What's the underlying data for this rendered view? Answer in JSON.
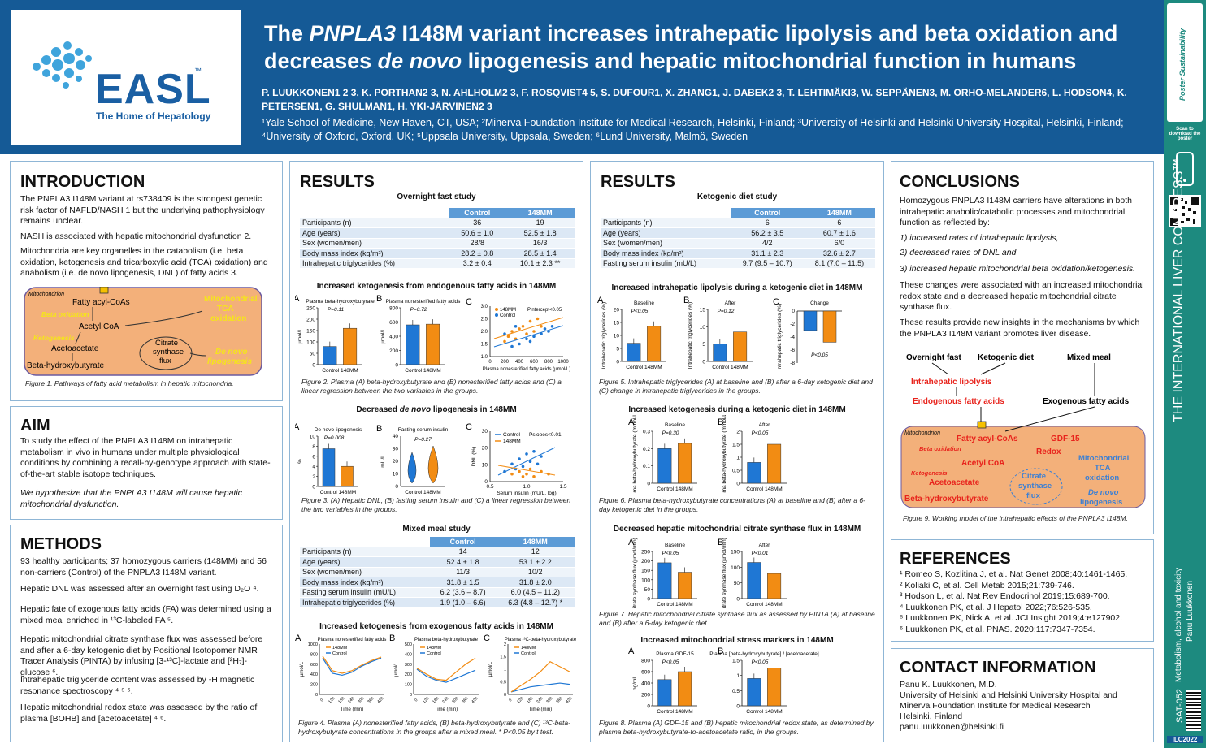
{
  "header": {
    "logo_text": "EASL",
    "logo_tm": "™",
    "logo_tagline": "The Home of Hepatology",
    "title_line1_pre": "The ",
    "title_line1_it": "PNPLA3",
    "title_line1_post": " I148M variant increases intrahepatic lipolysis and beta oxidation and",
    "title_line2_pre": "decreases ",
    "title_line2_it": "de novo",
    "title_line2_post": " lipogenesis and hepatic mitochondrial function in humans",
    "authors": "P. LUUKKONEN1 2 3, K. PORTHAN2 3, N. AHLHOLM2 3, F. ROSQVIST4 5, S. DUFOUR1, X. ZHANG1, J. DABEK2 3, T. LEHTIMÄKI3, W. SEPPÄNEN3, M. ORHO-MELANDER6, L. HODSON4, K. PETERSEN1, G. SHULMAN1, H. YKI-JÄRVINEN2 3",
    "affiliations": "¹Yale School of Medicine, New Haven, CT, USA; ²Minerva Foundation Institute for Medical Research, Helsinki, Finland; ³University of Helsinki and Helsinki University Hospital, Helsinki, Finland; ⁴University of Oxford, Oxford, UK; ⁵Uppsala University, Uppsala, Sweden; ⁶Lund University, Malmö, Sweden"
  },
  "sidebar": {
    "scan": "Scan to download the poster",
    "congress": "THE INTERNATIONAL LIVER CONGRESS™",
    "topic": "Metabolism, alcohol and toxicity",
    "author": "Panu Luukkonen",
    "code": "SAT-052",
    "ilc": "ILC2022",
    "poster_brand": "Poster Sustainability"
  },
  "intro": {
    "heading": "INTRODUCTION",
    "p1": "The PNPLA3 I148M variant at rs738409 is the strongest genetic risk factor of NAFLD/NASH 1 but the underlying pathophysiology remains unclear.",
    "p2": "NASH is associated with hepatic mitochondrial dysfunction 2.",
    "p3": "Mitochondria are key organelles in the catabolism (i.e. beta oxidation, ketogenesis and tricarboxylic acid (TCA) oxidation) and anabolism (i.e. de novo lipogenesis, DNL) of fatty acids 3.",
    "fig1": {
      "mito": "Mitochondrion",
      "facoa": "Fatty acyl-CoAs",
      "betaox": "Beta oxidation",
      "acetylcoa": "Acetyl CoA",
      "ketogen": "Ketogenesis",
      "acetoacetate": "Acetoacetate",
      "bhb": "Beta-hydroxybutyrate",
      "citrate1": "Citrate",
      "citrate2": "synthase",
      "citrate3": "flux",
      "tca1": "Mitochondrial",
      "tca2": "TCA",
      "tca3": "oxidation",
      "dnl1": "De novo",
      "dnl2": "lipogenesis"
    },
    "caption": "Figure 1. Pathways of fatty acid metabolism in hepatic mitochondria."
  },
  "aim": {
    "heading": "AIM",
    "p1": "To study the effect of the PNPLA3 I148M on intrahepatic metabolism in vivo in humans under multiple physiological conditions by combining a recall-by-genotype approach with state-of-the-art stable isotope techniques.",
    "p2": "We hypothesize that the PNPLA3 I148M will cause hepatic mitochondrial dysfunction."
  },
  "methods": {
    "heading": "METHODS",
    "items": [
      "93 healthy participants; 37 homozygous carriers (148MM) and 56 non-carriers (Control) of the PNPLA3 I148M variant.",
      "Hepatic DNL was assessed after an overnight fast using D₂O ⁴.",
      "Hepatic fate of exogenous fatty acids (FA) was determined using a mixed meal enriched in ¹³C-labeled FA ⁵.",
      "Hepatic mitochondrial citrate synthase flux was assessed before and after a 6-day ketogenic diet by Positional Isotopomer NMR Tracer Analysis (PINTA) by infusing [3-¹³C]-lactate and [²H₇]-glucose ⁶.",
      "Intrahepatic triglyceride content was assessed by ¹H magnetic resonance spectroscopy ⁴ ⁵ ⁶.",
      "Hepatic mitochondrial redox state was assessed by the ratio of plasma [BOHB] and [acetoacetate] ⁴ ⁶."
    ]
  },
  "results1": {
    "heading": "RESULTS",
    "t1_title": "Overnight fast study",
    "t1_cols": [
      "",
      "Control",
      "148MM"
    ],
    "t1_rows": [
      [
        "Participants (n)",
        "36",
        "19"
      ],
      [
        "Age (years)",
        "50.6 ± 1.0",
        "52.5 ± 1.8"
      ],
      [
        "Sex (women/men)",
        "28/8",
        "16/3"
      ],
      [
        "Body mass index (kg/m²)",
        "28.2 ± 0.8",
        "28.5 ± 1.4"
      ],
      [
        "Intrahepatic triglycerides (%)",
        "3.2 ± 0.4",
        "10.1 ± 2.3 **"
      ]
    ],
    "f2_title": "Increased ketogenesis from endogenous fatty acids in 148MM",
    "f2_cap": "Figure 2. Plasma (A) beta-hydroxybutyrate and (B) nonesterified fatty acids and (C) a linear regression between the two variables in the groups.",
    "f2": {
      "A": "A",
      "B": "B",
      "C": "C",
      "a_title": "Plasma beta-hydroxybutyrate",
      "a_p": "P=0.11",
      "a_ylabel": "µmol/L",
      "b_title": "Plasma nonesterified fatty acids",
      "b_p": "P=0.72",
      "b_ylabel": "µmol/L",
      "c_ylabel": "Plasma beta-hydroxybutyrate (µmol/L, log)",
      "c_xlabel": "Plasma nonesterified fatty acids (µmol/L)",
      "c_p": "Pintercept<0.05",
      "xcat": "Control 148MM"
    },
    "f3_title": "Decreased de novo lipogenesis in 148MM",
    "f3_cap": "Figure 3. (A) Hepatic DNL, (B) fasting serum insulin and (C) a linear regression between the two variables in the groups.",
    "f3": {
      "a_title": "De novo lipogenesis",
      "a_p": "P=0.008",
      "a_ylabel": "%",
      "b_title": "Fasting serum insulin",
      "b_p": "P=0.27",
      "b_ylabel": "mU/L",
      "c_ylabel": "DNL (%)",
      "c_xlabel": "Serum insulin (mU/L, log)",
      "c_p": "Pslopes<0.01"
    },
    "t2_title": "Mixed meal study",
    "t2_cols": [
      "",
      "Control",
      "148MM"
    ],
    "t2_rows": [
      [
        "Participants (n)",
        "14",
        "12"
      ],
      [
        "Age (years)",
        "52.4 ± 1.8",
        "53.1 ± 2.2"
      ],
      [
        "Sex (women/men)",
        "11/3",
        "10/2"
      ],
      [
        "Body mass index (kg/m²)",
        "31.8 ± 1.5",
        "31.8 ± 2.0"
      ],
      [
        "Fasting serum insulin (mU/L)",
        "6.2 (3.6 – 8.7)",
        "6.0 (4.5 – 11.2)"
      ],
      [
        "Intrahepatic triglycerides (%)",
        "1.9 (1.0 – 6.6)",
        "6.3 (4.8 – 12.7) *"
      ]
    ],
    "f4_title": "Increased ketogenesis from exogenous fatty acids in 148MM",
    "f4_cap": "Figure 4. Plasma (A) nonesterified fatty acids, (B) beta-hydroxybutyrate and (C) ¹³C-beta-hydroxybutyrate concentrations in the groups after a mixed meal. * P<0.05 by t test.",
    "f4": {
      "a_title": "Plasma nonesterified fatty acids",
      "b_title": "Plasma beta-hydroxybutyrate",
      "c_title": "Plasma ¹³C-beta-hydroxybutyrate",
      "xlabel": "Time (min)",
      "ylabel": "µmol/L"
    }
  },
  "results2": {
    "heading": "RESULTS",
    "t3_title": "Ketogenic diet study",
    "t3_cols": [
      "",
      "Control",
      "148MM"
    ],
    "t3_rows": [
      [
        "Participants (n)",
        "6",
        "6"
      ],
      [
        "Age (years)",
        "56.2 ± 3.5",
        "60.7 ± 1.6"
      ],
      [
        "Sex (women/men)",
        "4/2",
        "6/0"
      ],
      [
        "Body mass index (kg/m²)",
        "31.1 ± 2.3",
        "32.6 ± 2.7"
      ],
      [
        "Fasting serum insulin (mU/L)",
        "9.7 (9.5 – 10.7)",
        "8.1 (7.0 – 11.5)"
      ]
    ],
    "f5_title": "Increased intrahepatic lipolysis during a ketogenic diet in 148MM",
    "f5_cap": "Figure 5. Intrahepatic triglycerides (A) at baseline and (B) after a 6-day ketogenic diet and (C) change in intrahepatic triglycerides in the groups.",
    "f5": {
      "a_title": "Baseline",
      "a_p": "P<0.05",
      "b_title": "After",
      "b_p": "P=0.12",
      "c_title": "Change",
      "c_p": "P<0.05",
      "ylabel": "Intrahepatic triglycerides (%)"
    },
    "f6_title": "Increased ketogenesis during a ketogenic diet in 148MM",
    "f6_cap": "Figure 6. Plasma beta-hydroxybutyrate concentrations (A) at baseline and (B) after a 6-day ketogenic diet in the groups.",
    "f6": {
      "a_title": "Baseline",
      "a_p": "P=0.30",
      "b_title": "After",
      "b_p": "P<0.05",
      "ylabel": "Plasma beta-hydroxybutyrate (mmol/L)"
    },
    "f7_title": "Decreased hepatic mitochondrial citrate synthase flux in 148MM",
    "f7_cap": "Figure 7. Hepatic mitochondrial citrate synthase flux as assessed by PINTA (A) at baseline and (B) after a 6-day ketogenic diet.",
    "f7": {
      "a_title": "Baseline",
      "a_p": "P<0.05",
      "b_title": "After",
      "b_p": "P<0.01",
      "ylabel": "Citrate synthase flux (µmol/min)"
    },
    "f8_title": "Increased mitochondrial stress markers in 148MM",
    "f8_cap": "Figure 8. Plasma (A) GDF-15 and (B) hepatic mitochondrial redox state, as determined by plasma beta-hydroxybutyrate-to-acetoacetate ratio, in the groups.",
    "f8": {
      "a_title": "Plasma GDF-15",
      "a_p": "P<0.05",
      "a_ylabel": "pg/mL",
      "b_title": "Plasma [beta-hydroxybutyrate] / [acetoacetate]",
      "b_p": "P<0.05"
    }
  },
  "conclusions": {
    "heading": "CONCLUSIONS",
    "intro": "Homozygous PNPLA3 I148M carriers have alterations in both intrahepatic anabolic/catabolic processes and mitochondrial function as reflected by:",
    "items": [
      "1)  increased rates of intrahepatic lipolysis,",
      "2)  decreased rates of DNL and",
      "3)  increased hepatic mitochondrial beta oxidation/ketogenesis."
    ],
    "p2": "These changes were associated with an increased mitochondrial redox state and a decreased hepatic mitochondrial citrate synthase flux.",
    "p3": "These results provide new insights in the mechanisms by which the PNPLA3 I148M variant promotes liver disease.",
    "fig9": {
      "fast": "Overnight fast",
      "keto": "Ketogenic diet",
      "meal": "Mixed meal",
      "lipolysis": "Intrahepatic lipolysis",
      "endo": "Endogenous fatty acids",
      "exo": "Exogenous fatty acids",
      "mito": "Mitochondrion",
      "facoa": "Fatty acyl-CoAs",
      "gdf": "GDF-15",
      "betaox": "Beta oxidation",
      "redox": "Redox",
      "acetylcoa": "Acetyl CoA",
      "ketogen": "Ketogenesis",
      "acetoacetate": "Acetoacetate",
      "bhb": "Beta-hydroxybutyrate",
      "cs1": "Citrate",
      "cs2": "synthase",
      "cs3": "flux",
      "tca1": "Mitochondrial",
      "tca2": "TCA",
      "tca3": "oxidation",
      "dnl1": "De novo",
      "dnl2": "lipogenesis"
    },
    "caption": "Figure 9. Working model of the intrahepatic effects of the PNPLA3 I148M."
  },
  "references": {
    "heading": "REFERENCES",
    "items": [
      "¹ Romeo S, Kozlitina J, et al. Nat Genet 2008;40:1461-1465.",
      "² Koliaki C, et al. Cell Metab 2015;21:739-746.",
      "³ Hodson L, et al. Nat Rev Endocrinol 2019;15:689-700.",
      "⁴ Luukkonen PK, et al. J Hepatol 2022;76:526-535.",
      "⁵ Luukkonen PK, Nick A, et al. JCI Insight 2019;4:e127902.",
      "⁶ Luukkonen PK, et al. PNAS. 2020;117:7347-7354."
    ]
  },
  "contact": {
    "heading": "CONTACT INFORMATION",
    "lines": [
      "Panu K. Luukkonen, M.D.",
      "University of Helsinki and Helsinki University Hospital and",
      "Minerva Foundation Institute for Medical Research",
      "Helsinki, Finland",
      "panu.luukkonen@helsinki.fi"
    ]
  },
  "colors": {
    "control": "#1f77d4",
    "mm": "#f28c13",
    "header": "#155a96",
    "side": "#1d8a7f",
    "mito_fill": "#f3b07a",
    "red": "#e8231c"
  }
}
